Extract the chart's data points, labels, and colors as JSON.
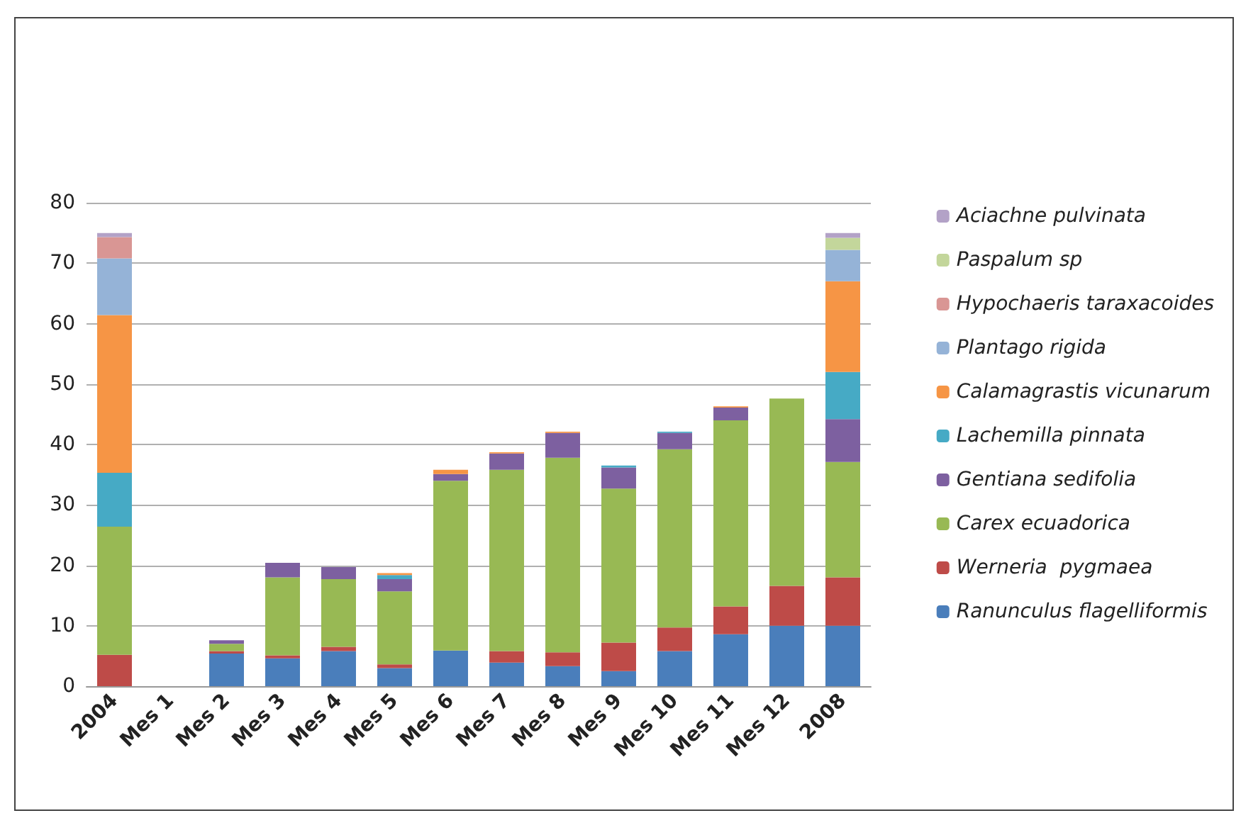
{
  "chart_data": {
    "type": "bar",
    "stacked": true,
    "categories": [
      "2004",
      "Mes 1",
      "Mes 2",
      "Mes 3",
      "Mes 4",
      "Mes 5",
      "Mes 6",
      "Mes 7",
      "Mes 8",
      "Mes 9",
      "Mes 10",
      "Mes 11",
      "Mes 12",
      "2008"
    ],
    "series": [
      {
        "name": "Ranunculus flagelliformis",
        "color": "#4a7ebb",
        "values": [
          0,
          0,
          5.4,
          4.6,
          5.8,
          3.0,
          5.9,
          3.9,
          3.3,
          2.5,
          5.8,
          8.6,
          10.0,
          10.0
        ]
      },
      {
        "name": "Werneria  pygmaea",
        "color": "#be4b48",
        "values": [
          5.2,
          0,
          0.4,
          0.5,
          0.7,
          0.6,
          0,
          1.9,
          2.3,
          4.7,
          3.9,
          4.6,
          6.6,
          8.0
        ]
      },
      {
        "name": "Carex ecuadorica",
        "color": "#98b954",
        "values": [
          21.2,
          0,
          1.2,
          12.9,
          11.2,
          12.1,
          28.1,
          30.0,
          32.2,
          25.5,
          29.5,
          30.8,
          31.0,
          19.1
        ]
      },
      {
        "name": "Gentiana sedifolia",
        "color": "#7d60a0",
        "values": [
          0,
          0,
          0.6,
          2.4,
          2.0,
          2.0,
          1.1,
          2.7,
          4.1,
          3.5,
          2.7,
          2.1,
          0,
          7.1
        ]
      },
      {
        "name": "Lachemilla pinnata",
        "color": "#46aac5",
        "values": [
          8.9,
          0,
          0,
          0,
          0,
          0.7,
          0,
          0,
          0,
          0.3,
          0.2,
          0,
          0,
          7.8
        ]
      },
      {
        "name": "Calamagrastis vicunarum",
        "color": "#f69545",
        "values": [
          26.1,
          0,
          0,
          0,
          0,
          0.3,
          0.7,
          0.2,
          0.2,
          0,
          0,
          0.2,
          0,
          15.0
        ]
      },
      {
        "name": "Plantago rigida",
        "color": "#95b3d7",
        "values": [
          9.4,
          0,
          0,
          0,
          0,
          0,
          0,
          0,
          0,
          0,
          0,
          0,
          0,
          5.2
        ]
      },
      {
        "name": "Hypochaeris taraxacoides",
        "color": "#d99694",
        "values": [
          3.5,
          0,
          0,
          0,
          0,
          0,
          0,
          0,
          0,
          0,
          0,
          0,
          0,
          0
        ]
      },
      {
        "name": "Paspalum sp",
        "color": "#c3d69b",
        "values": [
          0,
          0,
          0,
          0,
          0,
          0,
          0,
          0,
          0,
          0,
          0,
          0,
          0,
          2.0
        ]
      },
      {
        "name": "Aciachne pulvinata",
        "color": "#b3a2c7",
        "values": [
          0.7,
          0,
          0,
          0,
          0,
          0,
          0,
          0,
          0,
          0,
          0,
          0,
          0,
          0.8
        ]
      }
    ],
    "ylim": [
      0,
      80
    ],
    "yticks": [
      0,
      10,
      20,
      30,
      40,
      50,
      60,
      70,
      80
    ],
    "grid": "y",
    "legend": "right"
  }
}
